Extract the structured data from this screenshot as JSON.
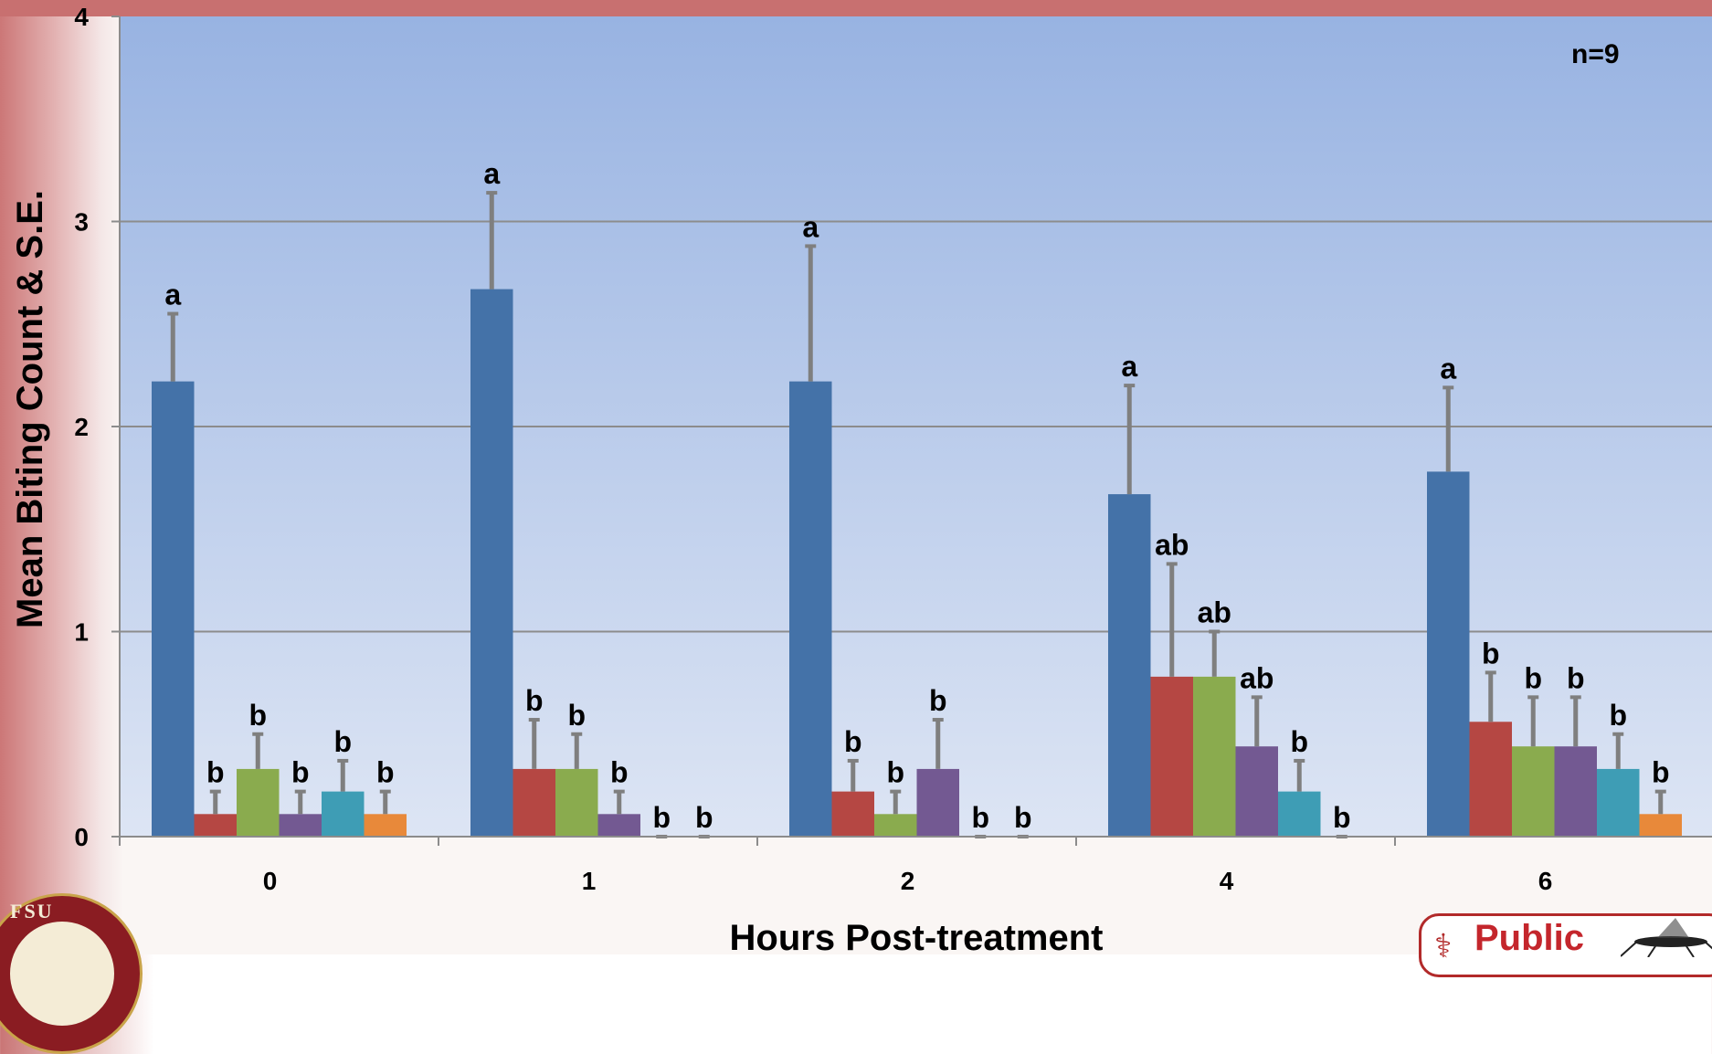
{
  "chart_data": {
    "type": "bar",
    "title": "",
    "xlabel": "Hours Post-treatment",
    "ylabel": "Mean Biting Count & S.E.",
    "ylim": [
      0,
      4
    ],
    "yticks": [
      "0",
      "1",
      "2",
      "3",
      "4"
    ],
    "categories": [
      "0",
      "1",
      "2",
      "4",
      "6"
    ],
    "annotation": "n=9",
    "grid": true,
    "legend": "none",
    "series": [
      {
        "color": "#4472a8",
        "values": [
          2.22,
          2.67,
          2.22,
          1.67,
          1.78
        ],
        "se": [
          0.33,
          0.47,
          0.66,
          0.53,
          0.41
        ],
        "labels": [
          "a",
          "a",
          "a",
          "a",
          "a"
        ]
      },
      {
        "color": "#b54743",
        "values": [
          0.11,
          0.33,
          0.22,
          0.78,
          0.56
        ],
        "se": [
          0.11,
          0.24,
          0.15,
          0.55,
          0.24
        ],
        "labels": [
          "b",
          "b",
          "b",
          "ab",
          "b"
        ]
      },
      {
        "color": "#8aab4e",
        "values": [
          0.33,
          0.33,
          0.11,
          0.78,
          0.44
        ],
        "se": [
          0.17,
          0.17,
          0.11,
          0.22,
          0.24
        ],
        "labels": [
          "b",
          "b",
          "b",
          "ab",
          "b"
        ]
      },
      {
        "color": "#735992",
        "values": [
          0.11,
          0.11,
          0.33,
          0.44,
          0.44
        ],
        "se": [
          0.11,
          0.11,
          0.24,
          0.24,
          0.24
        ],
        "labels": [
          "b",
          "b",
          "b",
          "ab",
          "b"
        ]
      },
      {
        "color": "#3e9db5",
        "values": [
          0.22,
          0.0,
          0.0,
          0.22,
          0.33
        ],
        "se": [
          0.15,
          0.0,
          0.0,
          0.15,
          0.17
        ],
        "labels": [
          "b",
          "b",
          "b",
          "b",
          "b"
        ]
      },
      {
        "color": "#e8893a",
        "values": [
          0.11,
          0.0,
          0.0,
          0.0,
          0.11
        ],
        "se": [
          0.11,
          0.0,
          0.0,
          0.0,
          0.11
        ],
        "labels": [
          "b",
          "b",
          "b",
          "b",
          "b"
        ]
      }
    ]
  },
  "logos": {
    "fsu_seal_text": "FLORIDA STATE UNIVERSITY",
    "public_health_text": "Public Health"
  },
  "colors": {
    "errorbar": "#7f7f7f",
    "gridline": "#8c8c8c",
    "plot_top": "#98b3e2",
    "plot_bottom": "#dde5f4",
    "header_band": "#c87070"
  }
}
